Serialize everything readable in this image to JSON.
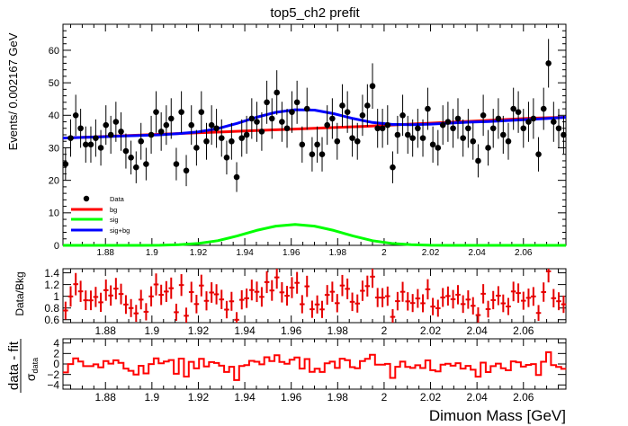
{
  "title": "top5_ch2   prefit",
  "x_axis_title": "Dimuon Mass [GeV]",
  "chart_data": [
    {
      "type": "scatter",
      "panel": "main",
      "title": "top5_ch2   prefit",
      "ylabel": "Events/ 0.002167 GeV",
      "xlim": [
        1.8617,
        2.0783
      ],
      "ylim": [
        0,
        68
      ],
      "x_ticks": [
        1.88,
        1.9,
        1.92,
        1.94,
        1.96,
        1.98,
        2,
        2.02,
        2.04,
        2.06
      ],
      "x_tick_labels": [
        "1.88",
        "1.9",
        "1.92",
        "1.94",
        "1.96",
        "1.98",
        "2",
        "2.02",
        "2.04",
        "2.06"
      ],
      "y_ticks": [
        0,
        10,
        20,
        30,
        40,
        50,
        60
      ],
      "y_tick_labels": [
        "0",
        "10",
        "20",
        "30",
        "40",
        "50",
        "60"
      ],
      "legend": {
        "placement": "bottom-left",
        "entries": [
          {
            "label": "Data",
            "marker": "point",
            "color": "#000000"
          },
          {
            "label": "bg",
            "marker": "line",
            "color": "#ff0000"
          },
          {
            "label": "sig",
            "marker": "line",
            "color": "#00ff00"
          },
          {
            "label": "sig+bg",
            "marker": "line",
            "color": "#0000ff"
          }
        ]
      },
      "x": [
        1.8628,
        1.865,
        1.8672,
        1.8693,
        1.8715,
        1.8737,
        1.8758,
        1.878,
        1.8802,
        1.8823,
        1.8845,
        1.8867,
        1.8888,
        1.891,
        1.8932,
        1.8953,
        1.8975,
        1.8997,
        1.9018,
        1.904,
        1.9062,
        1.9083,
        1.9105,
        1.9127,
        1.9148,
        1.917,
        1.9192,
        1.9213,
        1.9235,
        1.9257,
        1.9278,
        1.93,
        1.9322,
        1.9343,
        1.9365,
        1.9387,
        1.9408,
        1.943,
        1.9452,
        1.9473,
        1.9495,
        1.9517,
        1.9538,
        1.956,
        1.9582,
        1.9603,
        1.9625,
        1.9647,
        1.9668,
        1.969,
        1.9712,
        1.9733,
        1.9755,
        1.9777,
        1.9798,
        1.982,
        1.9842,
        1.9863,
        1.9885,
        1.9907,
        1.9928,
        1.995,
        1.9972,
        1.9993,
        2.0015,
        2.0037,
        2.0058,
        2.008,
        2.0102,
        2.0123,
        2.0145,
        2.0167,
        2.0188,
        2.021,
        2.0232,
        2.0253,
        2.0275,
        2.0297,
        2.0318,
        2.034,
        2.0362,
        2.0383,
        2.0405,
        2.0427,
        2.0448,
        2.047,
        2.0492,
        2.0513,
        2.0535,
        2.0557,
        2.0578,
        2.06,
        2.0622,
        2.0643,
        2.0665,
        2.0687,
        2.0708,
        2.073,
        2.0752,
        2.0773
      ],
      "series": [
        {
          "name": "Data",
          "values": [
            25,
            33,
            40,
            36,
            31,
            31,
            33,
            30,
            37,
            34,
            38,
            35,
            29,
            27,
            24,
            32,
            25,
            34,
            41,
            35,
            37,
            39,
            25,
            41,
            23,
            37,
            30,
            41,
            32,
            37,
            36,
            33,
            27,
            32,
            21,
            33,
            34,
            39,
            38,
            35,
            44,
            39,
            47,
            38,
            36,
            41,
            44,
            31,
            42,
            28,
            31,
            28,
            37,
            39,
            32,
            43,
            41,
            33,
            32,
            40,
            43,
            49,
            36,
            36,
            37,
            24,
            34,
            40,
            34,
            33,
            36,
            33,
            42,
            31,
            30,
            37,
            38,
            36,
            39,
            33,
            36,
            32,
            26,
            40,
            30,
            36,
            39,
            34,
            32,
            42,
            41,
            36,
            38,
            39,
            28,
            42,
            56,
            38,
            36,
            34
          ]
        },
        {
          "name": "bg",
          "values": [
            33.0,
            33.4,
            33.8,
            34.2,
            34.6,
            35.0,
            35.4,
            35.8,
            36.2,
            36.6,
            37.1,
            37.6,
            38.1,
            38.6,
            39.1,
            39.4
          ]
        },
        {
          "name": "sig",
          "values": [
            0.0,
            0.0,
            0.0,
            0.0,
            0.01,
            0.04,
            0.18,
            0.57,
            1.43,
            2.88,
            4.58,
            5.91,
            6.43,
            5.91,
            4.58,
            2.88,
            1.43,
            0.57,
            0.18,
            0.04,
            0.01,
            0.0,
            0.0,
            0.0,
            0.0,
            0.0,
            0.0
          ]
        },
        {
          "name": "sig+bg",
          "values": [
            33.0,
            33.2,
            33.4,
            33.6,
            33.8,
            34.0,
            34.4,
            34.9,
            35.9,
            37.5,
            39.4,
            40.9,
            41.7,
            41.6,
            40.5,
            39.0,
            37.8,
            37.2,
            37.1,
            37.3,
            37.6,
            37.9,
            38.1,
            38.4,
            38.7,
            39.0,
            39.4
          ]
        }
      ]
    },
    {
      "type": "scatter",
      "panel": "ratio",
      "ylabel": "Data/Bkg",
      "xlim": [
        1.8617,
        2.0783
      ],
      "ylim": [
        0.55,
        1.47
      ],
      "x_ticks": [
        1.88,
        1.9,
        1.92,
        1.94,
        1.96,
        1.98,
        2,
        2.02,
        2.04,
        2.06
      ],
      "x_tick_labels": [
        "1.88",
        "1.9",
        "1.92",
        "1.94",
        "1.96",
        "1.98",
        "2",
        "2.02",
        "2.04",
        "2.06"
      ],
      "y_ticks": [
        0.6,
        0.8,
        1,
        1.2,
        1.4
      ],
      "y_tick_labels": [
        "0.6",
        "0.8",
        "1",
        "1.2",
        "1.4"
      ]
    },
    {
      "type": "line",
      "panel": "pull",
      "ylabel_main": "data - fit",
      "ylabel_denominator": "σ",
      "ylabel_subscript": "data",
      "xlim": [
        1.8617,
        2.0783
      ],
      "ylim": [
        -4.8,
        4.8
      ],
      "x_ticks": [
        1.88,
        1.9,
        1.92,
        1.94,
        1.96,
        1.98,
        2,
        2.02,
        2.04,
        2.06
      ],
      "x_tick_labels": [
        "1.88",
        "1.9",
        "1.92",
        "1.94",
        "1.96",
        "1.98",
        "2",
        "2.02",
        "2.04",
        "2.06"
      ],
      "y_ticks": [
        -4,
        -2,
        0,
        2,
        4
      ],
      "y_tick_labels": [
        "−4",
        "−2",
        "0",
        "2",
        "4"
      ],
      "xlabel": "Dimuon Mass [GeV]"
    }
  ],
  "colors": {
    "data": "#000000",
    "bg": "#ff0000",
    "sig": "#00ff00",
    "sigbg": "#0000ff",
    "ratio": "#e60000",
    "pull": "#ff0000"
  }
}
